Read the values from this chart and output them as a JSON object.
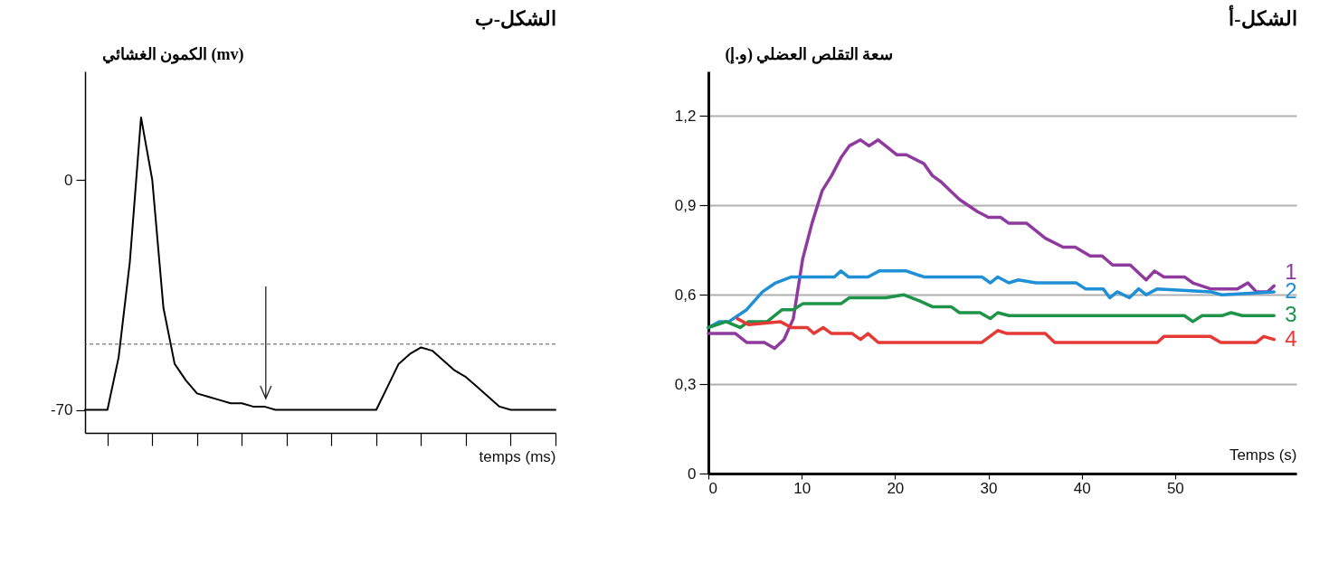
{
  "chart_data": [
    {
      "type": "line",
      "title": "الشكل-ب",
      "ylabel": "الكمون الغشائي (mv)",
      "xlabel": "temps (ms)",
      "categories": [
        null,
        null,
        null,
        null,
        null,
        null,
        null,
        null,
        null,
        null,
        null,
        null,
        null,
        null,
        null,
        null,
        null,
        null,
        null,
        null,
        null,
        null,
        null,
        null,
        null,
        null,
        null,
        null,
        null,
        null,
        null,
        null,
        null,
        null,
        null,
        null,
        null,
        null,
        null,
        null,
        null,
        null,
        null
      ],
      "values": [
        -70,
        -70,
        -70,
        -54,
        -25,
        19,
        0,
        -39,
        -56,
        -61,
        -65,
        -66,
        -67,
        -68,
        -68,
        -69,
        -69,
        -70,
        -70,
        -70,
        -70,
        -70,
        -70,
        -70,
        -70,
        -70,
        -70,
        -63,
        -56,
        -53,
        -51,
        -52,
        -55,
        -58,
        -60,
        -63,
        -66,
        -69,
        -70,
        -70,
        -70,
        -70,
        -70
      ],
      "color": "#000000",
      "ylim": [
        -77,
        33
      ],
      "yticks": [
        -70,
        0
      ],
      "tick_labels": "y",
      "ref_lines": [
        {
          "axis": "y",
          "value": -50,
          "line_style": "dashed",
          "color": "#555555"
        }
      ]
    },
    {
      "type": "line",
      "title": "الشكل-أ",
      "ylabel": "سعة التقلص العضلي (و.إ)",
      "xlabel": "Temps (s)",
      "xlim": [
        0,
        63
      ],
      "xticks": [
        0,
        10,
        20,
        30,
        40,
        50
      ],
      "ylim": [
        0,
        1.35
      ],
      "yticks": [
        {
          "value": 0,
          "label": "0"
        },
        {
          "value": 0.3,
          "label": "0,3"
        },
        {
          "value": 0.6,
          "label": "0,6"
        },
        {
          "value": 0.9,
          "label": "0,9"
        },
        {
          "value": 1.2,
          "label": "1,2"
        }
      ],
      "grid": "y",
      "series": [
        {
          "name": "1",
          "color": "#8e3a9e",
          "x": [
            0,
            2.9,
            4.1,
            6,
            7.1,
            8.1,
            9.1,
            10.1,
            11.1,
            12.2,
            13.2,
            14.2,
            15.1,
            16.3,
            17.2,
            18.2,
            20.2,
            21.2,
            23.1,
            24,
            24.9,
            26.9,
            28.8,
            30,
            31.3,
            32.2,
            34.1,
            36.1,
            38,
            39.3,
            40.9,
            42.2,
            43.3,
            45.2,
            46.9,
            47.8,
            48.8,
            51,
            51.9,
            53.8,
            56.7,
            57.8,
            58.7,
            59.9,
            60.6
          ],
          "values": [
            0.47,
            0.47,
            0.44,
            0.44,
            0.42,
            0.45,
            0.52,
            0.72,
            0.84,
            0.95,
            1.0,
            1.06,
            1.1,
            1.12,
            1.1,
            1.12,
            1.07,
            1.07,
            1.04,
            1.0,
            0.98,
            0.92,
            0.88,
            0.86,
            0.86,
            0.84,
            0.84,
            0.79,
            0.76,
            0.76,
            0.73,
            0.73,
            0.7,
            0.7,
            0.65,
            0.68,
            0.66,
            0.66,
            0.64,
            0.62,
            0.62,
            0.64,
            0.61,
            0.61,
            0.63
          ]
        },
        {
          "name": "2",
          "color": "#1f8fd6",
          "x": [
            0,
            1.2,
            2.2,
            4.1,
            5.8,
            7.2,
            8.9,
            13.5,
            14.2,
            15,
            17.1,
            18.3,
            21.2,
            23.1,
            29.3,
            30.2,
            31,
            32.2,
            33.2,
            35.1,
            36.5,
            37.3,
            39.4,
            40.4,
            42.3,
            43,
            43.8,
            45.1,
            46.1,
            46.9,
            48.1,
            53.8,
            55,
            60.6
          ],
          "values": [
            0.49,
            0.51,
            0.51,
            0.55,
            0.61,
            0.64,
            0.66,
            0.66,
            0.68,
            0.66,
            0.66,
            0.68,
            0.68,
            0.66,
            0.66,
            0.64,
            0.66,
            0.64,
            0.65,
            0.64,
            0.64,
            0.64,
            0.64,
            0.62,
            0.62,
            0.59,
            0.61,
            0.59,
            0.62,
            0.6,
            0.62,
            0.61,
            0.6,
            0.61
          ]
        },
        {
          "name": "3",
          "color": "#1e9448",
          "x": [
            0,
            1.9,
            3.4,
            4.3,
            6.3,
            7.9,
            9.1,
            10.1,
            14.2,
            15.1,
            19,
            20.9,
            22.6,
            24,
            26,
            26.9,
            29.1,
            30.2,
            31,
            32.2,
            51,
            51.9,
            52.9,
            55,
            56,
            57.2,
            60.6
          ],
          "values": [
            0.49,
            0.51,
            0.49,
            0.51,
            0.51,
            0.55,
            0.55,
            0.57,
            0.57,
            0.59,
            0.59,
            0.6,
            0.58,
            0.56,
            0.56,
            0.54,
            0.54,
            0.52,
            0.54,
            0.53,
            0.53,
            0.51,
            0.53,
            0.53,
            0.54,
            0.53,
            0.53
          ]
        },
        {
          "name": "4",
          "color": "#e53935",
          "x": [
            3.1,
            4.3,
            7.7,
            8.9,
            10.6,
            11.3,
            12.3,
            13.2,
            15.4,
            16.3,
            17.1,
            18.2,
            29.3,
            31,
            32,
            36.1,
            37.1,
            48.1,
            48.8,
            53.8,
            54.9,
            58.7,
            59.5,
            60.6
          ],
          "values": [
            0.52,
            0.5,
            0.51,
            0.49,
            0.49,
            0.47,
            0.49,
            0.47,
            0.47,
            0.45,
            0.47,
            0.44,
            0.44,
            0.48,
            0.47,
            0.47,
            0.44,
            0.44,
            0.46,
            0.46,
            0.44,
            0.44,
            0.46,
            0.45
          ]
        }
      ]
    }
  ]
}
